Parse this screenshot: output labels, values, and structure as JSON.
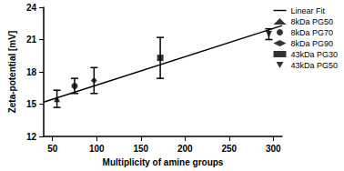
{
  "chart_data": {
    "type": "scatter",
    "x_label": "Multiplicity of amine groups",
    "y_label": "Zeta-potential [mV]",
    "xlim": [
      40,
      310
    ],
    "xticks": [
      50,
      100,
      150,
      200,
      250,
      300
    ],
    "ylim": [
      12,
      24
    ],
    "yticks": [
      12,
      15,
      18,
      21,
      24
    ],
    "grid": false,
    "legend": "right",
    "fit": {
      "name": "Linear Fit",
      "color": "#000000",
      "line_style": "solid",
      "x": [
        40,
        310
      ],
      "y": [
        15.2,
        22.3
      ]
    },
    "series": [
      {
        "name": "8kDa PG50",
        "marker": "triangle",
        "color": "#000000",
        "x": [
          55
        ],
        "values": [
          15.5
        ],
        "error": [
          0.8
        ]
      },
      {
        "name": "8kDa PG70",
        "marker": "circle",
        "color": "#000000",
        "x": [
          75
        ],
        "values": [
          16.7
        ],
        "error": [
          0.7
        ]
      },
      {
        "name": "8kDa PG90",
        "marker": "diamond",
        "color": "#000000",
        "x": [
          97
        ],
        "values": [
          17.2
        ],
        "error": [
          1.2
        ]
      },
      {
        "name": "43kDa PG30",
        "marker": "square",
        "color": "#000000",
        "x": [
          172
        ],
        "values": [
          19.3
        ],
        "error": [
          1.9
        ]
      },
      {
        "name": "43kDa PG50",
        "marker": "triangle_down",
        "color": "#000000",
        "x": [
          295
        ],
        "values": [
          21.5
        ],
        "error": [
          0.5
        ]
      }
    ]
  }
}
